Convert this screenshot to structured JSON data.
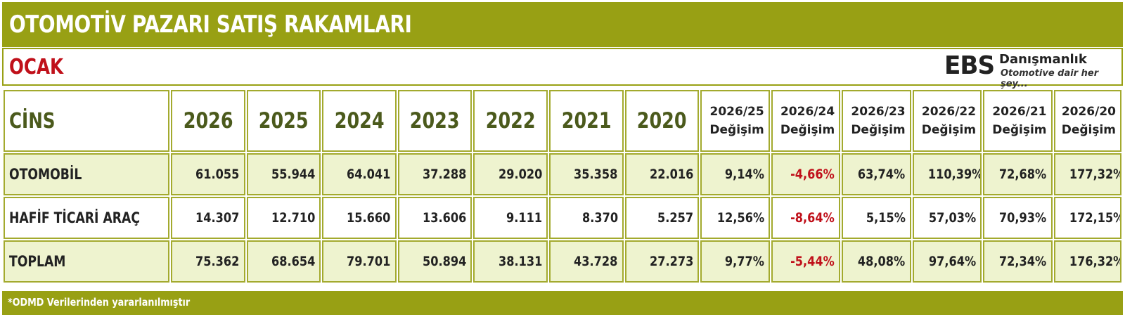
{
  "title": "OTOMOTİV PAZARI SATIŞ RAKAMLARI",
  "month": "OCAK",
  "logo": {
    "mark": "EBS",
    "brand": "Danışmanlık",
    "slogan": "Otomotive dair her şey..."
  },
  "table": {
    "cins_label": "CİNS",
    "years": [
      "2026",
      "2025",
      "2024",
      "2023",
      "2022",
      "2021",
      "2020"
    ],
    "changes": [
      {
        "period": "2026/25",
        "label": "Değişim"
      },
      {
        "period": "2026/24",
        "label": "Değişim"
      },
      {
        "period": "2026/23",
        "label": "Değişim"
      },
      {
        "period": "2026/22",
        "label": "Değişim"
      },
      {
        "period": "2026/21",
        "label": "Değişim"
      },
      {
        "period": "2026/20",
        "label": "Değişim"
      }
    ],
    "rows": [
      {
        "name": "OTOMOBİL",
        "values": [
          "61.055",
          "55.944",
          "64.041",
          "37.288",
          "29.020",
          "35.358",
          "22.016"
        ],
        "changes": [
          "9,14%",
          "-4,66%",
          "63,74%",
          "110,39%",
          "72,68%",
          "177,32%"
        ]
      },
      {
        "name": "HAFİF TİCARİ ARAÇ",
        "values": [
          "14.307",
          "12.710",
          "15.660",
          "13.606",
          "9.111",
          "8.370",
          "5.257"
        ],
        "changes": [
          "12,56%",
          "-8,64%",
          "5,15%",
          "57,03%",
          "70,93%",
          "172,15%"
        ]
      },
      {
        "name": "TOPLAM",
        "values": [
          "75.362",
          "68.654",
          "79.701",
          "50.894",
          "38.131",
          "43.728",
          "27.273"
        ],
        "changes": [
          "9,77%",
          "-5,44%",
          "48,08%",
          "97,64%",
          "72,34%",
          "176,32%"
        ]
      }
    ]
  },
  "footer": {
    "note": "*ODMD Verilerinden yararlanılmıştır"
  },
  "colors": {
    "accent": "#98a014",
    "negative": "#c0101a",
    "header_text": "#4b5a1c",
    "row_shade": "#eef3cf"
  }
}
